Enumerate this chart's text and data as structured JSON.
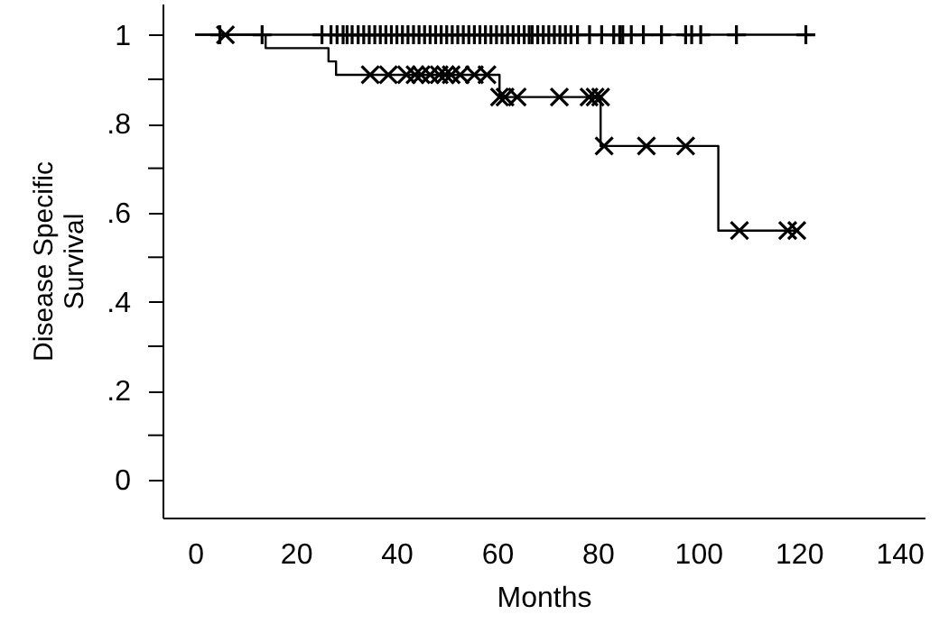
{
  "chart_data": {
    "type": "step",
    "xlabel": "Months",
    "ylabel": "Disease Specific Survival",
    "xlim": [
      -6.5,
      145
    ],
    "ylim": [
      -0.085,
      1.07
    ],
    "xticks": [
      0,
      20,
      40,
      60,
      80,
      100,
      120,
      140
    ],
    "yticks": [
      0,
      {
        "value": 0.1,
        "label": null
      },
      {
        "value": 0.2,
        "label": ".2"
      },
      {
        "value": 0.3,
        "label": null
      },
      {
        "value": 0.4,
        "label": ".4"
      },
      {
        "value": 0.5,
        "label": null
      },
      {
        "value": 0.6,
        "label": ".6"
      },
      {
        "value": 0.7,
        "label": null
      },
      {
        "value": 0.8,
        "label": ".8"
      },
      {
        "value": 0.9,
        "label": null
      },
      1
    ],
    "grid": false,
    "series": [
      {
        "color": "#000000",
        "x": [
          0,
          121.4
        ],
        "values": [
          1,
          1
        ]
      },
      {
        "type": "scatter",
        "marker": "cross",
        "color": "#000000",
        "x": [
          4.9,
          13.3,
          25.2,
          27,
          28.2,
          29.4,
          30.2,
          31.2,
          32.4,
          33.5,
          34.6,
          35.7,
          36.8,
          37.9,
          39,
          40.1,
          41.2,
          42.3,
          43.4,
          44.5,
          45.6,
          46.7,
          47.8,
          48.9,
          50,
          51.1,
          52.2,
          53.3,
          54.4,
          55.5,
          56.6,
          57.7,
          58.8,
          59.9,
          61,
          62.1,
          63.2,
          64.3,
          65.4,
          66.4,
          67,
          68.1,
          69.2,
          70.3,
          71.4,
          72.5,
          73.6,
          74.7,
          76,
          78.4,
          80.8,
          83.2,
          84.4,
          85,
          86.7,
          89.1,
          92.7,
          97.5,
          98.7,
          100.5,
          107.6,
          121.4
        ],
        "values": [
          1,
          1,
          1,
          1,
          1,
          1,
          1,
          1,
          1,
          1,
          1,
          1,
          1,
          1,
          1,
          1,
          1,
          1,
          1,
          1,
          1,
          1,
          1,
          1,
          1,
          1,
          1,
          1,
          1,
          1,
          1,
          1,
          1,
          1,
          1,
          1,
          1,
          1,
          1,
          1,
          1,
          1,
          1,
          1,
          1,
          1,
          1,
          1,
          1,
          1,
          1,
          1,
          1,
          1,
          1,
          1,
          1,
          1,
          1,
          1,
          1,
          1
        ]
      },
      {
        "color": "#000000",
        "x": [
          0,
          14,
          26.5,
          28,
          60.5,
          80.6,
          104,
          120
        ],
        "values": [
          1,
          0.97,
          0.94,
          0.91,
          0.86,
          0.75,
          0.56,
          0.56
        ]
      },
      {
        "type": "scatter",
        "marker": "x",
        "color": "#000000",
        "x": [
          6,
          34.8,
          38.4,
          42,
          43.7,
          44.9,
          46.7,
          48.5,
          49.7,
          50.9,
          52.7,
          55.5,
          58,
          60.5,
          61.6,
          64,
          72.4,
          78.3,
          79.5,
          80.6,
          81.3,
          89.7,
          97.5,
          108.2,
          117.8,
          119.6
        ],
        "values": [
          1,
          0.91,
          0.91,
          0.91,
          0.91,
          0.91,
          0.91,
          0.91,
          0.91,
          0.91,
          0.91,
          0.91,
          0.91,
          0.86,
          0.86,
          0.86,
          0.86,
          0.86,
          0.86,
          0.86,
          0.75,
          0.75,
          0.75,
          0.56,
          0.56,
          0.56
        ]
      }
    ]
  }
}
